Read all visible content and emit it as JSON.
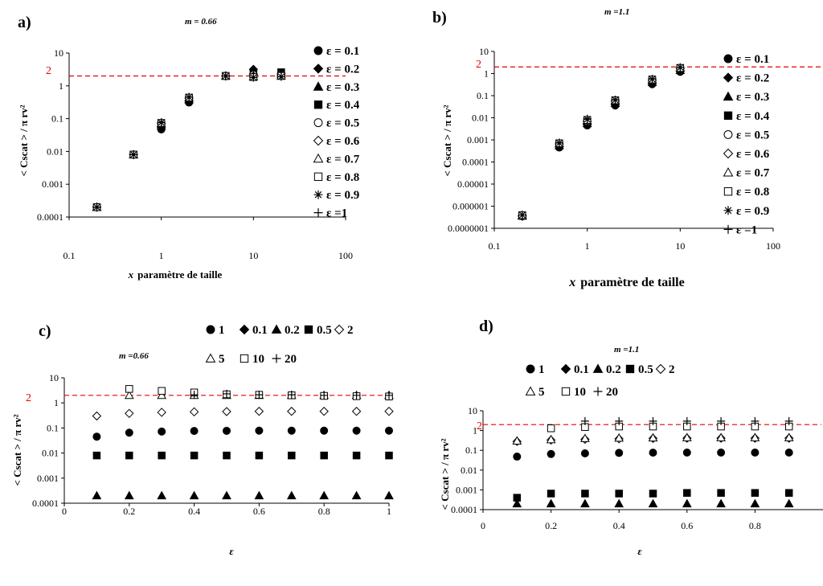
{
  "panels": {
    "a": {
      "letter": "a)",
      "m_label": "m  = 0.66",
      "xlabel_var": "x",
      "xlabel": "paramètre de taille",
      "ylabel": "< Cscat > / π rv²",
      "ref_label": "2",
      "x_ticks": [
        "0.1",
        "1",
        "10",
        "100"
      ],
      "y_ticks": [
        "0.0001",
        "0.001",
        "0.01",
        "0.1",
        "1",
        "10"
      ],
      "legend": [
        "ε = 0.1",
        "ε = 0.2",
        "ε = 0.3",
        "ε = 0.4",
        "ε = 0.5",
        "ε = 0.6",
        "ε = 0.7",
        "ε = 0.8",
        "ε = 0.9",
        "ε =1"
      ]
    },
    "b": {
      "letter": "b)",
      "m_label": "m  =1.1",
      "xlabel_var": "x",
      "xlabel": "paramètre de taille",
      "ylabel": "< Cscat > / π rv²",
      "ref_label": "2",
      "x_ticks": [
        "0.1",
        "1",
        "10",
        "100"
      ],
      "y_ticks": [
        "0.0000001",
        "0.000001",
        "0.00001",
        "0.0001",
        "0.001",
        "0.01",
        "0.1",
        "1",
        "10"
      ],
      "legend": [
        "ε = 0.1",
        "ε = 0.2",
        "ε = 0.3",
        "ε = 0.4",
        "ε = 0.5",
        "ε = 0.6",
        "ε = 0.7",
        "ε = 0.8",
        "ε = 0.9",
        "ε =1"
      ]
    },
    "c": {
      "letter": "c)",
      "m_label": "m  =0.66",
      "xlabel": "ε",
      "ylabel": "< Cscat > / π rv²",
      "ref_label": "2",
      "x_ticks": [
        "0",
        "0.2",
        "0.4",
        "0.6",
        "0.8",
        "1"
      ],
      "y_ticks": [
        "0.0001",
        "0.001",
        "0.01",
        "0.1",
        "1",
        "10"
      ],
      "legend": [
        "1",
        "0.1",
        "0.2",
        "0.5",
        "2",
        "5",
        "10",
        "20"
      ]
    },
    "d": {
      "letter": "d)",
      "m_label": "m  =1.1",
      "xlabel": "ε",
      "ylabel": "< Cscat > / π rv²",
      "ref_label": "2",
      "x_ticks": [
        "0",
        "0.2",
        "0.4",
        "0.6",
        "0.8"
      ],
      "y_ticks": [
        "0.0001",
        "0.001",
        "0.01",
        "0.1",
        "1",
        "10"
      ],
      "legend": [
        "1",
        "0.1",
        "0.2",
        "0.5",
        "2",
        "5",
        "10",
        "20"
      ]
    }
  },
  "marker_styles": {
    "circle_filled": "●",
    "diamond_filled": "◆",
    "triangle_filled": "▲",
    "square_filled": "■",
    "circle_open": "○",
    "diamond_open": "◇",
    "triangle_open": "△",
    "square_open": "□",
    "asterisk": "✳",
    "plus": "+"
  },
  "colors": {
    "reference_line": "#e60000",
    "marks": "#000000"
  },
  "chart_data": [
    {
      "type": "scatter",
      "title": "m = 0.66",
      "xlabel": "x paramètre de taille",
      "ylabel": "< Cscat > / π rv²",
      "xscale": "log",
      "yscale": "log",
      "xlim": [
        0.1,
        100
      ],
      "ylim": [
        0.0001,
        10
      ],
      "reference_line": 2,
      "legend_position": "right",
      "x": [
        0.2,
        0.5,
        1,
        2,
        5,
        10,
        20
      ],
      "series": [
        {
          "name": "ε = 0.1",
          "marker": "circle_filled",
          "values": [
            0.0002,
            0.008,
            0.047,
            0.31,
            2.0,
            2.0,
            2.1
          ]
        },
        {
          "name": "ε = 0.2",
          "marker": "diamond_filled",
          "values": [
            0.0002,
            0.008,
            0.055,
            0.35,
            2.0,
            3.2,
            2.4
          ]
        },
        {
          "name": "ε = 0.3",
          "marker": "triangle_filled",
          "values": [
            0.0002,
            0.008,
            0.06,
            0.38,
            2.0,
            2.8,
            2.3
          ]
        },
        {
          "name": "ε = 0.4",
          "marker": "square_filled",
          "values": [
            0.0002,
            0.008,
            0.065,
            0.4,
            2.0,
            2.4,
            2.6
          ]
        },
        {
          "name": "ε = 0.5",
          "marker": "circle_open",
          "values": [
            0.0002,
            0.008,
            0.068,
            0.41,
            2.0,
            2.2,
            2.2
          ]
        },
        {
          "name": "ε = 0.6",
          "marker": "diamond_open",
          "values": [
            0.0002,
            0.008,
            0.07,
            0.42,
            2.0,
            2.0,
            2.1
          ]
        },
        {
          "name": "ε = 0.7",
          "marker": "triangle_open",
          "values": [
            0.0002,
            0.008,
            0.072,
            0.43,
            2.0,
            1.9,
            2.0
          ]
        },
        {
          "name": "ε = 0.8",
          "marker": "square_open",
          "values": [
            0.0002,
            0.008,
            0.074,
            0.44,
            2.0,
            1.85,
            2.0
          ]
        },
        {
          "name": "ε = 0.9",
          "marker": "asterisk",
          "values": [
            0.0002,
            0.008,
            0.076,
            0.45,
            2.0,
            1.8,
            1.9
          ]
        },
        {
          "name": "ε =1",
          "marker": "plus",
          "values": [
            0.0002,
            0.008,
            0.078,
            0.46,
            2.0,
            1.8,
            1.9
          ]
        }
      ]
    },
    {
      "type": "scatter",
      "title": "m =1.1",
      "xlabel": "x paramètre de taille",
      "ylabel": "< Cscat > / π rv²",
      "xscale": "log",
      "yscale": "log",
      "xlim": [
        0.1,
        100
      ],
      "ylim": [
        1e-07,
        10
      ],
      "reference_line": 2,
      "legend_position": "right",
      "x": [
        0.2,
        0.5,
        1,
        2,
        5,
        10
      ],
      "series": [
        {
          "name": "ε = 0.1",
          "marker": "circle_filled",
          "values": [
            3.5e-07,
            0.00045,
            0.0045,
            0.036,
            0.33,
            1.2
          ]
        },
        {
          "name": "ε = 0.2",
          "marker": "diamond_filled",
          "values": [
            3.5e-07,
            0.0005,
            0.005,
            0.04,
            0.36,
            1.3
          ]
        },
        {
          "name": "ε = 0.3",
          "marker": "triangle_filled",
          "values": [
            3.6e-07,
            0.00055,
            0.0055,
            0.045,
            0.4,
            1.4
          ]
        },
        {
          "name": "ε = 0.4",
          "marker": "square_filled",
          "values": [
            3.7e-07,
            0.0006,
            0.006,
            0.05,
            0.45,
            1.5
          ]
        },
        {
          "name": "ε = 0.5",
          "marker": "circle_open",
          "values": [
            3.8e-07,
            0.00062,
            0.0065,
            0.055,
            0.48,
            1.6
          ]
        },
        {
          "name": "ε = 0.6",
          "marker": "diamond_open",
          "values": [
            3.8e-07,
            0.00065,
            0.007,
            0.058,
            0.5,
            1.7
          ]
        },
        {
          "name": "ε = 0.7",
          "marker": "triangle_open",
          "values": [
            3.9e-07,
            0.00068,
            0.0075,
            0.06,
            0.52,
            1.8
          ]
        },
        {
          "name": "ε = 0.8",
          "marker": "square_open",
          "values": [
            3.9e-07,
            0.0007,
            0.008,
            0.062,
            0.54,
            1.8
          ]
        },
        {
          "name": "ε = 0.9",
          "marker": "asterisk",
          "values": [
            4e-07,
            0.00072,
            0.0085,
            0.064,
            0.56,
            1.9
          ]
        },
        {
          "name": "ε =1",
          "marker": "plus",
          "values": [
            4e-07,
            0.00075,
            0.009,
            0.066,
            0.58,
            1.9
          ]
        }
      ]
    },
    {
      "type": "scatter",
      "title": "m =0.66",
      "xlabel": "ε",
      "ylabel": "< Cscat > / π rv²",
      "yscale": "log",
      "xlim": [
        0,
        1
      ],
      "ylim": [
        0.0001,
        10
      ],
      "reference_line": 2,
      "legend_position": "top",
      "x": [
        0.1,
        0.2,
        0.3,
        0.4,
        0.5,
        0.6,
        0.7,
        0.8,
        0.9,
        1.0
      ],
      "series": [
        {
          "name": "1",
          "marker": "circle_filled",
          "values": [
            0.045,
            0.065,
            0.072,
            0.076,
            0.077,
            0.078,
            0.078,
            0.078,
            0.078,
            0.078
          ]
        },
        {
          "name": "0.1",
          "marker": "diamond_filled",
          "values": []
        },
        {
          "name": "0.2",
          "marker": "triangle_filled",
          "values": [
            0.0002,
            0.0002,
            0.0002,
            0.0002,
            0.0002,
            0.0002,
            0.0002,
            0.0002,
            0.0002,
            0.0002
          ]
        },
        {
          "name": "0.5",
          "marker": "square_filled",
          "values": [
            0.008,
            0.008,
            0.008,
            0.008,
            0.008,
            0.008,
            0.008,
            0.008,
            0.008,
            0.008
          ]
        },
        {
          "name": "2",
          "marker": "diamond_open",
          "values": [
            0.3,
            0.38,
            0.42,
            0.44,
            0.45,
            0.46,
            0.46,
            0.46,
            0.46,
            0.46
          ]
        },
        {
          "name": "5",
          "marker": "triangle_open",
          "values": [
            null,
            2.0,
            2.0,
            2.0,
            2.0,
            2.0,
            2.0,
            2.0,
            2.0,
            2.0
          ]
        },
        {
          "name": "10",
          "marker": "square_open",
          "values": [
            null,
            3.6,
            3.0,
            2.6,
            2.2,
            2.1,
            2.0,
            1.9,
            1.85,
            1.8
          ]
        },
        {
          "name": "20",
          "marker": "plus",
          "values": [
            null,
            null,
            null,
            2.1,
            2.3,
            2.1,
            2.1,
            2.0,
            2.0,
            2.0
          ]
        }
      ]
    },
    {
      "type": "scatter",
      "title": "m =1.1",
      "xlabel": "ε",
      "ylabel": "< Cscat > / π rv²",
      "yscale": "log",
      "xlim": [
        0,
        1
      ],
      "ylim": [
        0.0001,
        10
      ],
      "reference_line": 2,
      "legend_position": "top",
      "x": [
        0.1,
        0.2,
        0.3,
        0.4,
        0.5,
        0.6,
        0.7,
        0.8,
        0.9,
        1.0
      ],
      "series": [
        {
          "name": "1",
          "marker": "circle_filled",
          "values": [
            0.048,
            0.065,
            0.07,
            0.074,
            0.076,
            0.077,
            0.077,
            0.077,
            0.077,
            0.077
          ]
        },
        {
          "name": "0.1",
          "marker": "diamond_filled",
          "values": []
        },
        {
          "name": "0.2",
          "marker": "triangle_filled",
          "values": [
            0.0002,
            0.0002,
            0.0002,
            0.0002,
            0.0002,
            0.0002,
            0.0002,
            0.0002,
            0.0002,
            0.0002
          ]
        },
        {
          "name": "0.5",
          "marker": "square_filled",
          "values": [
            0.0004,
            0.00065,
            0.00065,
            0.00065,
            0.00065,
            0.0007,
            0.0007,
            0.0007,
            0.0007,
            0.0007
          ]
        },
        {
          "name": "2",
          "marker": "diamond_open",
          "values": [
            0.28,
            0.33,
            0.36,
            0.38,
            0.4,
            0.41,
            0.41,
            0.41,
            0.41,
            0.41
          ]
        },
        {
          "name": "5",
          "marker": "triangle_open",
          "values": [
            0.3,
            0.35,
            0.4,
            0.42,
            0.43,
            0.44,
            0.44,
            0.44,
            0.44,
            0.44
          ]
        },
        {
          "name": "10",
          "marker": "square_open",
          "values": [
            null,
            1.3,
            1.5,
            1.6,
            1.6,
            1.6,
            1.6,
            1.6,
            1.6,
            1.6
          ]
        },
        {
          "name": "20",
          "marker": "plus",
          "values": [
            null,
            null,
            3.0,
            3.0,
            3.0,
            3.0,
            3.0,
            3.0,
            3.0,
            3.0
          ]
        }
      ]
    }
  ]
}
